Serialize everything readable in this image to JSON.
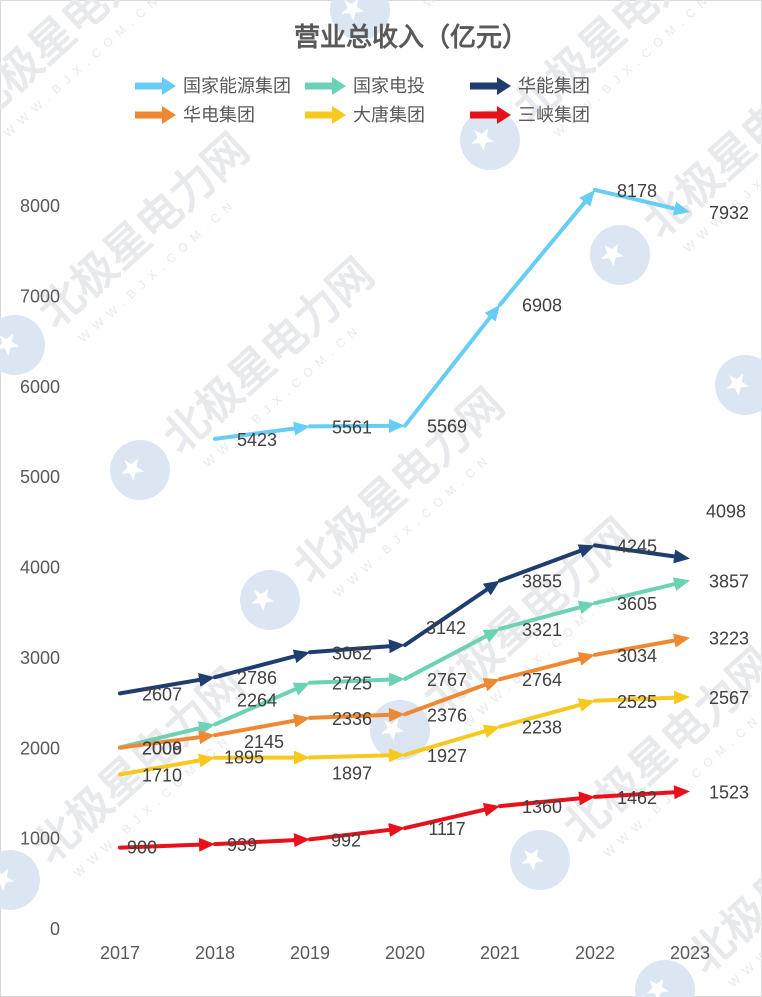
{
  "chart_data": {
    "type": "line",
    "title": "营业总收入（亿元）",
    "categories": [
      "2017",
      "2018",
      "2019",
      "2020",
      "2021",
      "2022",
      "2023"
    ],
    "y_axis": {
      "ticks": [
        0,
        1000,
        2000,
        3000,
        4000,
        5000,
        6000,
        7000,
        8000
      ]
    },
    "ylim": [
      0,
      8000
    ],
    "grid": false,
    "legend_position": "top",
    "series": [
      {
        "name": "国家能源集团",
        "color": "#68cdf4",
        "values": [
          null,
          5423,
          5561,
          5569,
          6908,
          8178,
          7932
        ]
      },
      {
        "name": "国家电投",
        "color": "#6dd2b5",
        "values": [
          2009,
          2264,
          2725,
          2767,
          3321,
          3605,
          3857
        ]
      },
      {
        "name": "华能集团",
        "color": "#1f3e6f",
        "values": [
          2607,
          2786,
          3062,
          3142,
          3855,
          4245,
          4098
        ]
      },
      {
        "name": "华电集团",
        "color": "#ee8833",
        "values": [
          2006,
          2145,
          2336,
          2376,
          2764,
          3034,
          3223
        ]
      },
      {
        "name": "大唐集团",
        "color": "#f7c81e",
        "values": [
          1710,
          1895,
          1897,
          1927,
          2238,
          2525,
          2567
        ]
      },
      {
        "name": "三峡集团",
        "color": "#e8101a",
        "values": [
          900,
          939,
          992,
          1117,
          1360,
          1462,
          1523
        ]
      }
    ]
  },
  "watermark": {
    "brand": "北极星电力网",
    "url": "WWW.BJX.COM.CN",
    "text_color": "#e7e9ed",
    "logo_color": "#dbe6f2"
  }
}
